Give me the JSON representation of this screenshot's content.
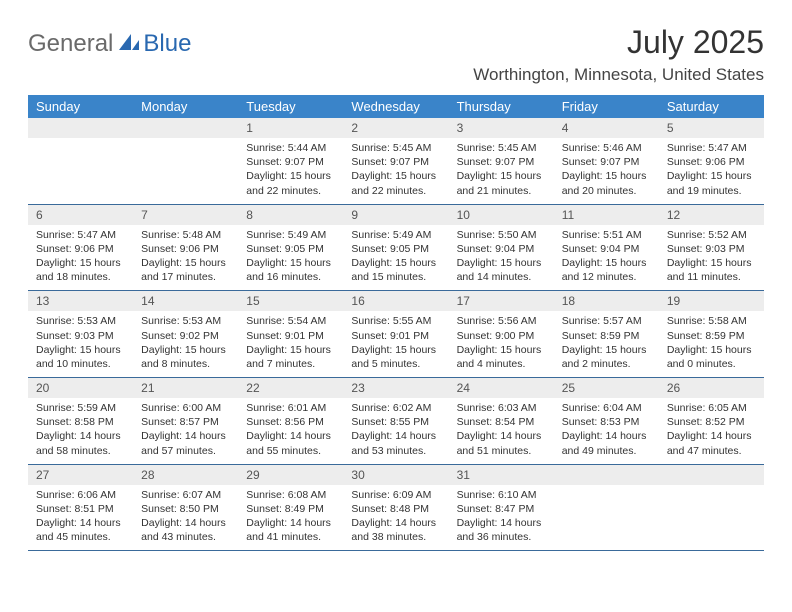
{
  "logo": {
    "text1": "General",
    "text2": "Blue"
  },
  "title": "July 2025",
  "location": "Worthington, Minnesota, United States",
  "colors": {
    "header_bg": "#3a84c9",
    "header_text": "#ffffff",
    "daynum_bg": "#ededed",
    "border": "#3a6a9a",
    "logo_gray": "#6a6a6a",
    "logo_blue": "#2968b0"
  },
  "day_names": [
    "Sunday",
    "Monday",
    "Tuesday",
    "Wednesday",
    "Thursday",
    "Friday",
    "Saturday"
  ],
  "weeks": [
    [
      {
        "n": "",
        "sr": "",
        "ss": "",
        "dl": ""
      },
      {
        "n": "",
        "sr": "",
        "ss": "",
        "dl": ""
      },
      {
        "n": "1",
        "sr": "Sunrise: 5:44 AM",
        "ss": "Sunset: 9:07 PM",
        "dl": "Daylight: 15 hours and 22 minutes."
      },
      {
        "n": "2",
        "sr": "Sunrise: 5:45 AM",
        "ss": "Sunset: 9:07 PM",
        "dl": "Daylight: 15 hours and 22 minutes."
      },
      {
        "n": "3",
        "sr": "Sunrise: 5:45 AM",
        "ss": "Sunset: 9:07 PM",
        "dl": "Daylight: 15 hours and 21 minutes."
      },
      {
        "n": "4",
        "sr": "Sunrise: 5:46 AM",
        "ss": "Sunset: 9:07 PM",
        "dl": "Daylight: 15 hours and 20 minutes."
      },
      {
        "n": "5",
        "sr": "Sunrise: 5:47 AM",
        "ss": "Sunset: 9:06 PM",
        "dl": "Daylight: 15 hours and 19 minutes."
      }
    ],
    [
      {
        "n": "6",
        "sr": "Sunrise: 5:47 AM",
        "ss": "Sunset: 9:06 PM",
        "dl": "Daylight: 15 hours and 18 minutes."
      },
      {
        "n": "7",
        "sr": "Sunrise: 5:48 AM",
        "ss": "Sunset: 9:06 PM",
        "dl": "Daylight: 15 hours and 17 minutes."
      },
      {
        "n": "8",
        "sr": "Sunrise: 5:49 AM",
        "ss": "Sunset: 9:05 PM",
        "dl": "Daylight: 15 hours and 16 minutes."
      },
      {
        "n": "9",
        "sr": "Sunrise: 5:49 AM",
        "ss": "Sunset: 9:05 PM",
        "dl": "Daylight: 15 hours and 15 minutes."
      },
      {
        "n": "10",
        "sr": "Sunrise: 5:50 AM",
        "ss": "Sunset: 9:04 PM",
        "dl": "Daylight: 15 hours and 14 minutes."
      },
      {
        "n": "11",
        "sr": "Sunrise: 5:51 AM",
        "ss": "Sunset: 9:04 PM",
        "dl": "Daylight: 15 hours and 12 minutes."
      },
      {
        "n": "12",
        "sr": "Sunrise: 5:52 AM",
        "ss": "Sunset: 9:03 PM",
        "dl": "Daylight: 15 hours and 11 minutes."
      }
    ],
    [
      {
        "n": "13",
        "sr": "Sunrise: 5:53 AM",
        "ss": "Sunset: 9:03 PM",
        "dl": "Daylight: 15 hours and 10 minutes."
      },
      {
        "n": "14",
        "sr": "Sunrise: 5:53 AM",
        "ss": "Sunset: 9:02 PM",
        "dl": "Daylight: 15 hours and 8 minutes."
      },
      {
        "n": "15",
        "sr": "Sunrise: 5:54 AM",
        "ss": "Sunset: 9:01 PM",
        "dl": "Daylight: 15 hours and 7 minutes."
      },
      {
        "n": "16",
        "sr": "Sunrise: 5:55 AM",
        "ss": "Sunset: 9:01 PM",
        "dl": "Daylight: 15 hours and 5 minutes."
      },
      {
        "n": "17",
        "sr": "Sunrise: 5:56 AM",
        "ss": "Sunset: 9:00 PM",
        "dl": "Daylight: 15 hours and 4 minutes."
      },
      {
        "n": "18",
        "sr": "Sunrise: 5:57 AM",
        "ss": "Sunset: 8:59 PM",
        "dl": "Daylight: 15 hours and 2 minutes."
      },
      {
        "n": "19",
        "sr": "Sunrise: 5:58 AM",
        "ss": "Sunset: 8:59 PM",
        "dl": "Daylight: 15 hours and 0 minutes."
      }
    ],
    [
      {
        "n": "20",
        "sr": "Sunrise: 5:59 AM",
        "ss": "Sunset: 8:58 PM",
        "dl": "Daylight: 14 hours and 58 minutes."
      },
      {
        "n": "21",
        "sr": "Sunrise: 6:00 AM",
        "ss": "Sunset: 8:57 PM",
        "dl": "Daylight: 14 hours and 57 minutes."
      },
      {
        "n": "22",
        "sr": "Sunrise: 6:01 AM",
        "ss": "Sunset: 8:56 PM",
        "dl": "Daylight: 14 hours and 55 minutes."
      },
      {
        "n": "23",
        "sr": "Sunrise: 6:02 AM",
        "ss": "Sunset: 8:55 PM",
        "dl": "Daylight: 14 hours and 53 minutes."
      },
      {
        "n": "24",
        "sr": "Sunrise: 6:03 AM",
        "ss": "Sunset: 8:54 PM",
        "dl": "Daylight: 14 hours and 51 minutes."
      },
      {
        "n": "25",
        "sr": "Sunrise: 6:04 AM",
        "ss": "Sunset: 8:53 PM",
        "dl": "Daylight: 14 hours and 49 minutes."
      },
      {
        "n": "26",
        "sr": "Sunrise: 6:05 AM",
        "ss": "Sunset: 8:52 PM",
        "dl": "Daylight: 14 hours and 47 minutes."
      }
    ],
    [
      {
        "n": "27",
        "sr": "Sunrise: 6:06 AM",
        "ss": "Sunset: 8:51 PM",
        "dl": "Daylight: 14 hours and 45 minutes."
      },
      {
        "n": "28",
        "sr": "Sunrise: 6:07 AM",
        "ss": "Sunset: 8:50 PM",
        "dl": "Daylight: 14 hours and 43 minutes."
      },
      {
        "n": "29",
        "sr": "Sunrise: 6:08 AM",
        "ss": "Sunset: 8:49 PM",
        "dl": "Daylight: 14 hours and 41 minutes."
      },
      {
        "n": "30",
        "sr": "Sunrise: 6:09 AM",
        "ss": "Sunset: 8:48 PM",
        "dl": "Daylight: 14 hours and 38 minutes."
      },
      {
        "n": "31",
        "sr": "Sunrise: 6:10 AM",
        "ss": "Sunset: 8:47 PM",
        "dl": "Daylight: 14 hours and 36 minutes."
      },
      {
        "n": "",
        "sr": "",
        "ss": "",
        "dl": ""
      },
      {
        "n": "",
        "sr": "",
        "ss": "",
        "dl": ""
      }
    ]
  ]
}
